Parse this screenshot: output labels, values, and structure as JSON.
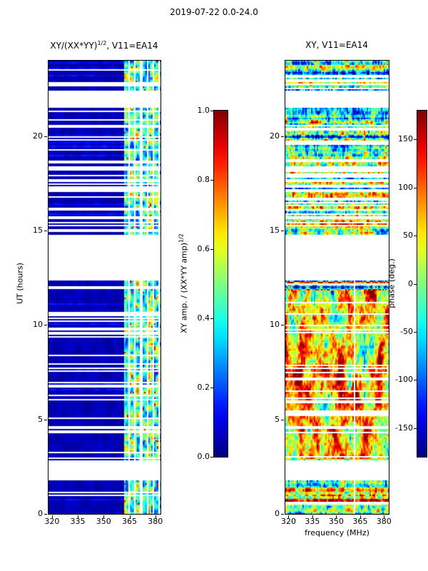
{
  "figure": {
    "title": "2019-07-22 0.0-24.0",
    "background_color": "#ffffff",
    "axes_color": "#000000",
    "colormap": {
      "name": "jet",
      "stops": [
        "#00007f",
        "#0000ff",
        "#00ffff",
        "#7fff7f",
        "#ffff00",
        "#ff0000",
        "#7f0000"
      ]
    }
  },
  "chart_data": [
    {
      "type": "heatmap",
      "panel": "left",
      "title": {
        "prefix": "XY/(XX*YY)",
        "sup": "1/2",
        "suffix": ", V11=EA14"
      },
      "xlabel": "",
      "ylabel": "UT (hours)",
      "x_range_mhz": [
        318,
        383
      ],
      "y_range_hours": [
        0,
        24
      ],
      "x_ticks": [
        320,
        335,
        350,
        365,
        380
      ],
      "y_ticks": [
        0,
        5,
        10,
        15,
        20
      ],
      "value_range": [
        0,
        1
      ],
      "colorbar": {
        "label": {
          "prefix": "XY amp. / (XX*YY amp)",
          "sup": "1/2"
        },
        "ticks": [
          "1.0",
          "0.8",
          "0.6",
          "0.4",
          "0.2",
          "0.0"
        ],
        "tick_values": [
          1.0,
          0.8,
          0.6,
          0.4,
          0.2,
          0.0
        ],
        "range": [
          0,
          1
        ]
      },
      "structure": {
        "background_amplitude": 0.03,
        "signal_band_mhz": [
          361.5,
          383
        ],
        "band_amplitude_range": [
          0.12,
          0.9
        ],
        "band_separators_mhz": [
          361.6,
          365.0,
          368.4,
          371.8,
          375.2,
          378.6,
          382.0
        ],
        "white_gaps_hours": [
          [
            1.75,
            2.85
          ],
          [
            12.35,
            14.8
          ],
          [
            21.5,
            22.35
          ]
        ],
        "sparse_row_regions": [
          [
            0,
            1.7,
            0.1
          ],
          [
            2.9,
            4.3,
            0.12
          ],
          [
            4.3,
            5.6,
            0.3
          ],
          [
            5.6,
            7.0,
            0.12
          ],
          [
            7.0,
            8.2,
            0.28
          ],
          [
            8.2,
            9.3,
            0.12
          ],
          [
            9.3,
            11.8,
            0.22
          ],
          [
            11.8,
            12.35,
            0.35
          ],
          [
            14.8,
            15.2,
            0.3
          ],
          [
            15.2,
            18.5,
            0.5
          ],
          [
            18.5,
            21.5,
            0.18
          ],
          [
            22.35,
            23.3,
            0.35
          ],
          [
            23.3,
            24,
            0.15
          ]
        ]
      }
    },
    {
      "type": "heatmap",
      "panel": "right",
      "title": {
        "prefix": "XY, V11=EA14",
        "sup": "",
        "suffix": ""
      },
      "xlabel": "frequency (MHz)",
      "ylabel": "",
      "x_range_mhz": [
        318,
        383
      ],
      "y_range_hours": [
        0,
        24
      ],
      "x_ticks": [
        320,
        335,
        350,
        365,
        380
      ],
      "y_ticks": [
        0,
        5,
        10,
        15,
        20
      ],
      "value_range": [
        -180,
        180
      ],
      "colorbar": {
        "label": {
          "prefix": "phase (deg.)",
          "sup": ""
        },
        "ticks": [
          "150",
          "100",
          "50",
          "0",
          "-50",
          "-100",
          "-150"
        ],
        "tick_values": [
          150,
          100,
          50,
          0,
          -50,
          -100,
          -150
        ],
        "range": [
          -180,
          180
        ]
      },
      "structure": {
        "smooth_phase_region_hours": [
          2.9,
          11.8
        ],
        "white_columns_mhz": [
          361.8
        ],
        "white_gaps_hours": [
          [
            1.75,
            2.85
          ],
          [
            12.35,
            14.8
          ],
          [
            21.5,
            22.35
          ]
        ],
        "sparse_row_regions": [
          [
            0,
            1.7,
            0.1
          ],
          [
            2.9,
            4.3,
            0.12
          ],
          [
            4.3,
            5.6,
            0.3
          ],
          [
            5.6,
            7.0,
            0.12
          ],
          [
            7.0,
            8.2,
            0.28
          ],
          [
            8.2,
            9.3,
            0.12
          ],
          [
            9.3,
            11.8,
            0.22
          ],
          [
            11.8,
            12.35,
            0.35
          ],
          [
            14.8,
            15.2,
            0.3
          ],
          [
            15.2,
            18.5,
            0.5
          ],
          [
            18.5,
            21.5,
            0.18
          ],
          [
            22.35,
            23.3,
            0.35
          ],
          [
            23.3,
            24,
            0.15
          ]
        ]
      }
    }
  ],
  "render_seed": 20190722
}
